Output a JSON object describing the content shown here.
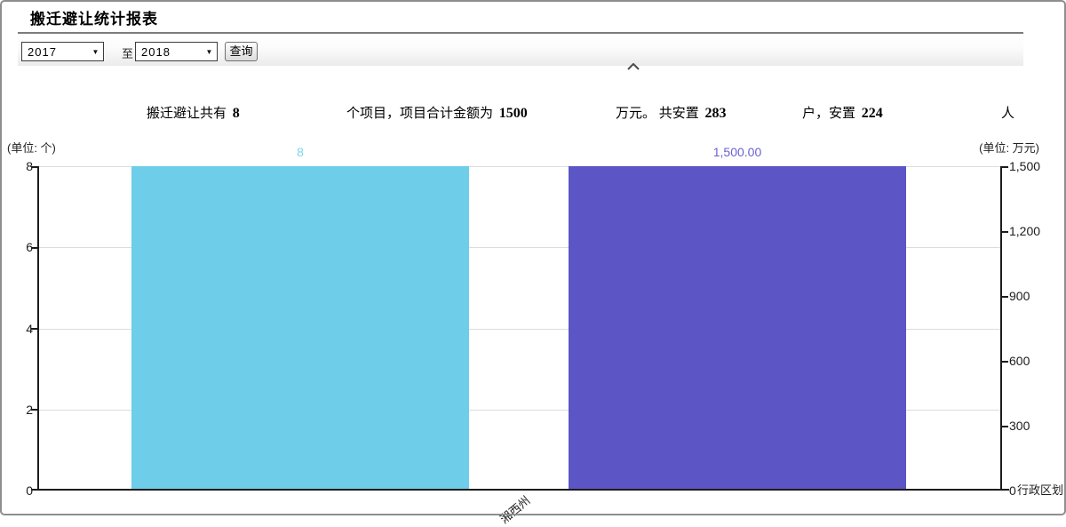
{
  "page": {
    "title": "搬迁避让统计报表"
  },
  "toolbar": {
    "year_from": "2017",
    "to_label": "至",
    "year_to": "2018",
    "query_button": "查询"
  },
  "summary": {
    "part1": "搬迁避让共有",
    "value1": "8",
    "part2": "个项目，项目合计金额为",
    "value2": "1500",
    "part3": "万元。 共安置",
    "value3": "283",
    "part4": "户，安置",
    "value4": "224",
    "part5": "人"
  },
  "chart_data": {
    "type": "bar",
    "categories": [
      "湘西州"
    ],
    "x_axis_title": "行政区划",
    "series": [
      {
        "value_axis": "left",
        "values": [
          8
        ],
        "bar_label": "8",
        "color": "#6ecde9",
        "label_color": "#7fd3ec"
      },
      {
        "value_axis": "right",
        "values": [
          1500
        ],
        "bar_label": "1,500.00",
        "color": "#5b55c5",
        "label_color": "#6b60cf"
      }
    ],
    "left_axis": {
      "unit": "(单位: 个)",
      "range": [
        0,
        8
      ],
      "ticks": [
        "8",
        "6",
        "4",
        "2",
        "0"
      ]
    },
    "right_axis": {
      "unit": "(单位: 万元)",
      "range": [
        0,
        1500
      ],
      "ticks": [
        "1,500",
        "1,200",
        "900",
        "600",
        "300",
        "0"
      ]
    },
    "grid": true,
    "legend": "none"
  }
}
